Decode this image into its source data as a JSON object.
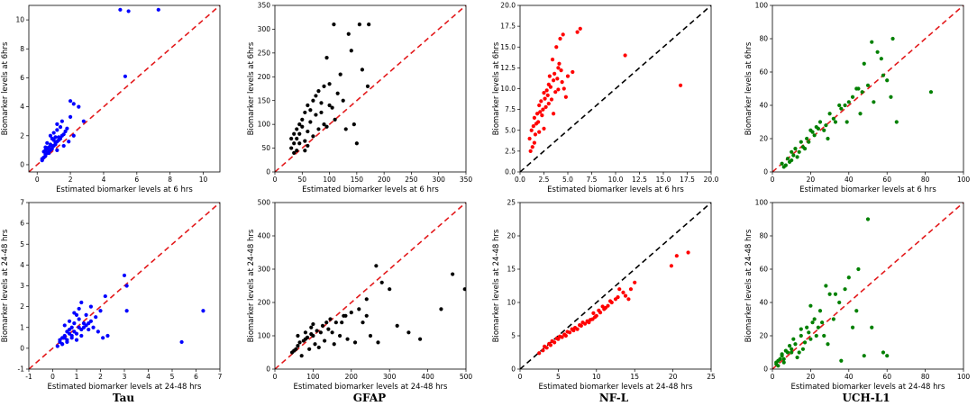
{
  "column_labels": [
    "Tau",
    "GFAP",
    "NF-L",
    "UCH-L1"
  ],
  "chart_data": [
    {
      "type": "scatter",
      "title": "",
      "column": "Tau",
      "row": "6hrs",
      "xlabel": "Estimated biomarker levels at 6 hrs",
      "ylabel": "Biomarker levels at 6hrs",
      "xlim": [
        -0.5,
        11
      ],
      "ylim": [
        -0.5,
        11
      ],
      "xticks": [
        0,
        2,
        4,
        6,
        8,
        10
      ],
      "yticks": [
        0,
        2,
        4,
        6,
        8,
        10
      ],
      "point_color": "#0000ff",
      "ref_line_color": "#e31a1c",
      "x": [
        5.0,
        5.5,
        7.3,
        5.3,
        2.0,
        2.2,
        2.5,
        1.5,
        2.8,
        1.2,
        1.8,
        0.5,
        0.6,
        0.7,
        0.8,
        0.9,
        1.0,
        1.1,
        1.2,
        1.3,
        1.4,
        0.4,
        0.6,
        0.8,
        1.0,
        1.2,
        1.4,
        1.6,
        0.3,
        0.5,
        0.7,
        0.9,
        1.1,
        1.3,
        1.5,
        1.7,
        0.5,
        0.8,
        1.0,
        1.2,
        0.4,
        0.6,
        0.9,
        1.1,
        0.3,
        0.5,
        0.7,
        2.0,
        2.2,
        1.6,
        1.9
      ],
      "y": [
        10.7,
        10.6,
        10.7,
        6.1,
        4.4,
        4.2,
        4.0,
        3.0,
        3.0,
        2.8,
        2.5,
        1.0,
        1.5,
        1.2,
        2.0,
        1.8,
        2.2,
        1.5,
        2.4,
        1.9,
        2.6,
        0.5,
        0.8,
        1.0,
        1.3,
        1.6,
        1.8,
        2.1,
        0.3,
        0.6,
        0.9,
        1.1,
        1.4,
        1.7,
        2.0,
        2.3,
        1.2,
        1.4,
        1.7,
        1.0,
        0.9,
        1.1,
        1.3,
        1.9,
        0.4,
        0.7,
        0.8,
        3.3,
        2.0,
        1.3,
        1.6
      ]
    },
    {
      "type": "scatter",
      "title": "",
      "column": "GFAP",
      "row": "6hrs",
      "xlabel": "Estimated biomarker levels at 6 hrs",
      "ylabel": "Biomarker levels at 6hrs",
      "xlim": [
        0,
        350
      ],
      "ylim": [
        0,
        350
      ],
      "xticks": [
        0,
        50,
        100,
        150,
        200,
        250,
        300,
        350
      ],
      "yticks": [
        0,
        50,
        100,
        150,
        200,
        250,
        300,
        350
      ],
      "point_color": "#000000",
      "ref_line_color": "#e31a1c",
      "x": [
        108,
        155,
        172,
        135,
        95,
        140,
        160,
        120,
        100,
        80,
        75,
        70,
        90,
        115,
        60,
        55,
        50,
        45,
        40,
        35,
        30,
        65,
        85,
        105,
        125,
        150,
        95,
        110,
        70,
        60,
        50,
        45,
        40,
        35,
        30,
        55,
        65,
        75,
        85,
        100,
        90,
        80,
        130,
        145,
        170,
        55,
        40,
        35,
        60,
        45
      ],
      "y": [
        310,
        310,
        310,
        290,
        240,
        255,
        215,
        205,
        185,
        170,
        160,
        150,
        180,
        165,
        140,
        125,
        110,
        100,
        90,
        80,
        70,
        130,
        145,
        135,
        150,
        60,
        95,
        110,
        75,
        85,
        95,
        80,
        70,
        60,
        50,
        65,
        105,
        120,
        125,
        140,
        100,
        90,
        90,
        100,
        180,
        45,
        45,
        40,
        55,
        60
      ]
    },
    {
      "type": "scatter",
      "title": "",
      "column": "NF-L",
      "row": "6hrs",
      "xlabel": "Estimated biomarker levels at 6 hrs",
      "ylabel": "Biomarker levels at 6hrs",
      "xlim": [
        0,
        20
      ],
      "ylim": [
        0,
        20
      ],
      "xticks": [
        0.0,
        2.5,
        5.0,
        7.5,
        10.0,
        12.5,
        15.0,
        17.5,
        20.0
      ],
      "yticks": [
        0.0,
        2.5,
        5.0,
        7.5,
        10.0,
        12.5,
        15.0,
        17.5,
        20.0
      ],
      "point_color": "#ff0000",
      "ref_line_color": "#000000",
      "x": [
        6.3,
        6.0,
        4.5,
        4.2,
        3.8,
        11.0,
        16.8,
        5.5,
        5.0,
        4.0,
        3.5,
        3.0,
        2.5,
        2.0,
        1.5,
        1.2,
        1.0,
        1.8,
        2.2,
        2.8,
        3.2,
        3.6,
        4.1,
        4.6,
        4.8,
        1.3,
        1.6,
        1.9,
        2.4,
        2.6,
        2.9,
        3.3,
        3.7,
        3.9,
        4.3,
        1.1,
        1.4,
        1.7,
        2.1,
        2.3,
        2.7,
        3.1,
        3.4,
        1.5,
        2.0,
        2.5,
        3.0,
        3.5,
        4.0,
        4.4
      ],
      "y": [
        17.2,
        16.8,
        16.5,
        16.0,
        15.0,
        14.0,
        10.4,
        12.0,
        11.5,
        12.5,
        11.0,
        10.5,
        9.5,
        8.0,
        6.5,
        5.0,
        4.0,
        7.0,
        8.5,
        9.8,
        10.2,
        11.8,
        13.0,
        10.0,
        9.0,
        3.0,
        4.5,
        6.0,
        7.5,
        8.8,
        9.2,
        8.7,
        9.6,
        11.2,
        12.2,
        2.5,
        5.5,
        5.8,
        7.2,
        6.8,
        7.8,
        11.5,
        13.5,
        3.5,
        4.8,
        5.2,
        8.2,
        7.0,
        9.9,
        10.8
      ]
    },
    {
      "type": "scatter",
      "title": "",
      "column": "UCH-L1",
      "row": "6hrs",
      "xlabel": "Estimated biomarker levels at 6 hrs",
      "ylabel": "Biomarker levels at 6hrs",
      "xlim": [
        0,
        100
      ],
      "ylim": [
        0,
        100
      ],
      "xticks": [
        0,
        20,
        40,
        60,
        80,
        100
      ],
      "yticks": [
        0,
        20,
        40,
        60,
        80,
        100
      ],
      "point_color": "#008000",
      "ref_line_color": "#e31a1c",
      "x": [
        63,
        52,
        55,
        57,
        48,
        83,
        65,
        60,
        45,
        40,
        35,
        30,
        25,
        20,
        15,
        10,
        5,
        8,
        12,
        18,
        22,
        28,
        32,
        38,
        42,
        47,
        50,
        53,
        58,
        62,
        6,
        9,
        11,
        14,
        16,
        19,
        21,
        24,
        27,
        29,
        33,
        36,
        39,
        44,
        46,
        7,
        10,
        13,
        17,
        23
      ],
      "y": [
        80,
        78,
        72,
        68,
        65,
        48,
        30,
        55,
        50,
        42,
        40,
        35,
        30,
        25,
        18,
        12,
        5,
        8,
        14,
        20,
        22,
        28,
        32,
        40,
        45,
        48,
        52,
        42,
        58,
        45,
        3,
        6,
        10,
        12,
        15,
        18,
        24,
        26,
        25,
        20,
        30,
        38,
        30,
        50,
        35,
        4,
        7,
        9,
        14,
        27
      ]
    },
    {
      "type": "scatter",
      "title": "",
      "column": "Tau",
      "row": "24-48hrs",
      "xlabel": "Estimated biomarker levels at 24-48 hrs",
      "ylabel": "Biomarker levels at 24-48 hrs",
      "xlim": [
        -1,
        7
      ],
      "ylim": [
        -1,
        7
      ],
      "xticks": [
        -1,
        0,
        1,
        2,
        3,
        4,
        5,
        6,
        7
      ],
      "yticks": [
        -1,
        0,
        1,
        2,
        3,
        4,
        5,
        6,
        7
      ],
      "point_color": "#0000ff",
      "ref_line_color": "#e31a1c",
      "x": [
        3.0,
        3.1,
        2.2,
        6.3,
        5.4,
        3.1,
        2.0,
        1.8,
        1.5,
        1.2,
        1.0,
        0.8,
        0.6,
        0.4,
        0.3,
        0.5,
        0.7,
        0.9,
        1.1,
        1.3,
        1.4,
        1.6,
        1.7,
        1.9,
        2.1,
        2.3,
        0.2,
        0.4,
        0.6,
        0.8,
        1.0,
        1.2,
        1.4,
        0.3,
        0.5,
        0.7,
        0.9,
        1.1,
        1.3,
        1.5,
        0.4,
        0.6,
        0.8,
        1.0,
        1.2,
        0.5,
        0.7,
        0.9,
        1.1,
        1.6
      ],
      "y": [
        3.5,
        3.0,
        2.5,
        1.8,
        0.3,
        1.8,
        1.8,
        1.5,
        1.2,
        2.2,
        1.6,
        1.0,
        0.8,
        0.5,
        0.3,
        0.6,
        0.9,
        1.2,
        1.4,
        1.0,
        1.6,
        1.3,
        1.0,
        0.8,
        0.5,
        0.6,
        0.1,
        0.2,
        0.4,
        0.6,
        0.7,
        0.9,
        1.1,
        0.4,
        0.5,
        0.7,
        0.8,
        1.0,
        1.2,
        0.9,
        0.2,
        0.3,
        0.5,
        0.4,
        0.6,
        1.1,
        1.3,
        1.7,
        1.9,
        2.0
      ]
    },
    {
      "type": "scatter",
      "title": "",
      "column": "GFAP",
      "row": "24-48hrs",
      "xlabel": "Estimated biomarker levels at 24-48 hrs",
      "ylabel": "Biomarker levels at 24-48 hrs",
      "xlim": [
        0,
        500
      ],
      "ylim": [
        0,
        500
      ],
      "xticks": [
        0,
        100,
        200,
        300,
        400,
        500
      ],
      "yticks": [
        0,
        100,
        200,
        300,
        400,
        500
      ],
      "point_color": "#000000",
      "ref_line_color": "#e31a1c",
      "x": [
        265,
        280,
        465,
        497,
        435,
        300,
        240,
        220,
        200,
        180,
        160,
        140,
        120,
        100,
        80,
        60,
        50,
        45,
        55,
        65,
        75,
        85,
        95,
        110,
        125,
        135,
        150,
        170,
        190,
        210,
        230,
        250,
        270,
        320,
        350,
        380,
        70,
        90,
        105,
        115,
        130,
        145,
        60,
        80,
        95,
        100,
        155,
        175,
        185,
        240
      ],
      "y": [
        310,
        260,
        285,
        240,
        180,
        240,
        210,
        180,
        170,
        160,
        140,
        120,
        110,
        100,
        90,
        70,
        55,
        50,
        60,
        80,
        85,
        95,
        105,
        115,
        130,
        140,
        110,
        100,
        90,
        80,
        140,
        100,
        80,
        130,
        110,
        90,
        40,
        60,
        75,
        65,
        85,
        150,
        100,
        110,
        125,
        135,
        75,
        140,
        160,
        160
      ]
    },
    {
      "type": "scatter",
      "title": "",
      "column": "NF-L",
      "row": "24-48hrs",
      "xlabel": "Estimated biomarker levels at 24-48 hrs",
      "ylabel": "Biomarker levels at 24-48 hrs",
      "xlim": [
        0,
        25
      ],
      "ylim": [
        0,
        25
      ],
      "xticks": [
        0,
        5,
        10,
        15,
        20,
        25
      ],
      "yticks": [
        0,
        5,
        10,
        15,
        20,
        25
      ],
      "point_color": "#ff0000",
      "ref_line_color": "#000000",
      "x": [
        22.0,
        20.5,
        19.8,
        15.0,
        14.5,
        13.5,
        13.0,
        12.5,
        12.0,
        11.5,
        11.0,
        10.5,
        10.0,
        9.5,
        9.0,
        8.5,
        8.0,
        7.5,
        7.0,
        6.5,
        6.0,
        5.5,
        5.0,
        4.5,
        4.0,
        3.5,
        3.0,
        2.5,
        9.8,
        10.3,
        11.2,
        8.8,
        7.8,
        6.8,
        5.8,
        4.8,
        3.8,
        12.8,
        13.8,
        14.2,
        9.2,
        8.2,
        7.2,
        6.2,
        5.2,
        4.2,
        3.2,
        11.8,
        10.8,
        9.6
      ],
      "y": [
        17.5,
        17.0,
        15.5,
        13.0,
        12.0,
        11.5,
        12.0,
        10.5,
        10.0,
        9.5,
        9.0,
        8.5,
        8.0,
        7.5,
        7.0,
        6.8,
        6.5,
        6.0,
        5.8,
        5.5,
        5.0,
        4.8,
        4.5,
        4.0,
        3.6,
        3.2,
        2.8,
        2.4,
        7.8,
        8.8,
        9.2,
        7.2,
        6.6,
        6.0,
        5.2,
        4.6,
        3.8,
        10.8,
        11.0,
        10.5,
        7.4,
        7.0,
        6.2,
        5.6,
        4.9,
        4.2,
        3.4,
        10.2,
        9.4,
        8.4
      ]
    },
    {
      "type": "scatter",
      "title": "",
      "column": "UCH-L1",
      "row": "24-48hrs",
      "xlabel": "Estimated biomarker levels at 24-48 hrs",
      "ylabel": "Biomarker levels at 24-48 hrs",
      "xlim": [
        0,
        100
      ],
      "ylim": [
        0,
        100
      ],
      "xticks": [
        0,
        20,
        40,
        60,
        80,
        100
      ],
      "yticks": [
        0,
        20,
        40,
        60,
        80,
        100
      ],
      "point_color": "#008000",
      "ref_line_color": "#e31a1c",
      "x": [
        50,
        45,
        40,
        38,
        35,
        58,
        60,
        52,
        30,
        28,
        25,
        22,
        20,
        18,
        15,
        12,
        10,
        8,
        5,
        3,
        2,
        4,
        6,
        9,
        11,
        14,
        16,
        19,
        21,
        24,
        27,
        29,
        32,
        36,
        42,
        48,
        3,
        5,
        7,
        13,
        17,
        23,
        26,
        33,
        44,
        2,
        6,
        10,
        15,
        20
      ],
      "y": [
        90,
        60,
        55,
        48,
        40,
        10,
        8,
        25,
        45,
        50,
        35,
        30,
        38,
        25,
        20,
        15,
        12,
        10,
        8,
        5,
        3,
        6,
        4,
        14,
        18,
        10,
        12,
        22,
        28,
        25,
        20,
        15,
        30,
        5,
        25,
        8,
        2,
        9,
        11,
        7,
        16,
        20,
        28,
        45,
        35,
        4,
        6,
        10,
        24,
        18
      ]
    }
  ]
}
